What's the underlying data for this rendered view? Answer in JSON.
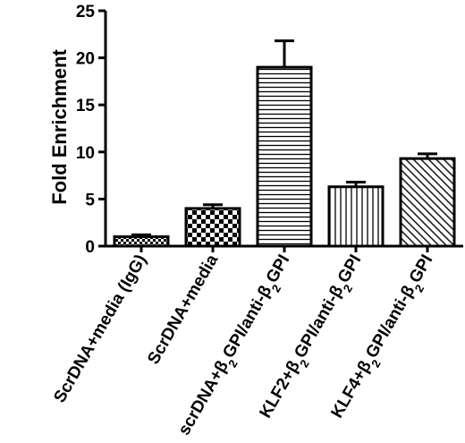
{
  "chart_data": {
    "type": "bar",
    "ylabel": "Fold Enrichment",
    "ylim": [
      0,
      25
    ],
    "yticks": [
      0,
      5,
      10,
      15,
      20,
      25
    ],
    "grid": false,
    "legend": "none",
    "categories": [
      {
        "prefix": "ScrDNA+media (IgG)",
        "segments": []
      },
      {
        "prefix": "ScrDNA+media",
        "segments": []
      },
      {
        "prefix": "scrDNA+",
        "segments": [
          "β",
          "2",
          "GPI/anti-",
          "β",
          "2",
          "GPI"
        ]
      },
      {
        "prefix": "KLF2+",
        "segments": [
          "β",
          "2",
          "GPI/anti-",
          "β",
          "2",
          "GPI"
        ]
      },
      {
        "prefix": "KLF4+",
        "segments": [
          "β",
          "2",
          "GPI/anti-",
          "β",
          "2",
          "GPI"
        ]
      }
    ],
    "values": [
      1.0,
      4.0,
      19.0,
      6.3,
      9.3
    ],
    "errors": [
      0.2,
      0.4,
      2.8,
      0.5,
      0.5
    ],
    "patterns": [
      "small-checker",
      "large-checker",
      "horizontal-lines",
      "vertical-lines",
      "diagonal-lines"
    ]
  }
}
